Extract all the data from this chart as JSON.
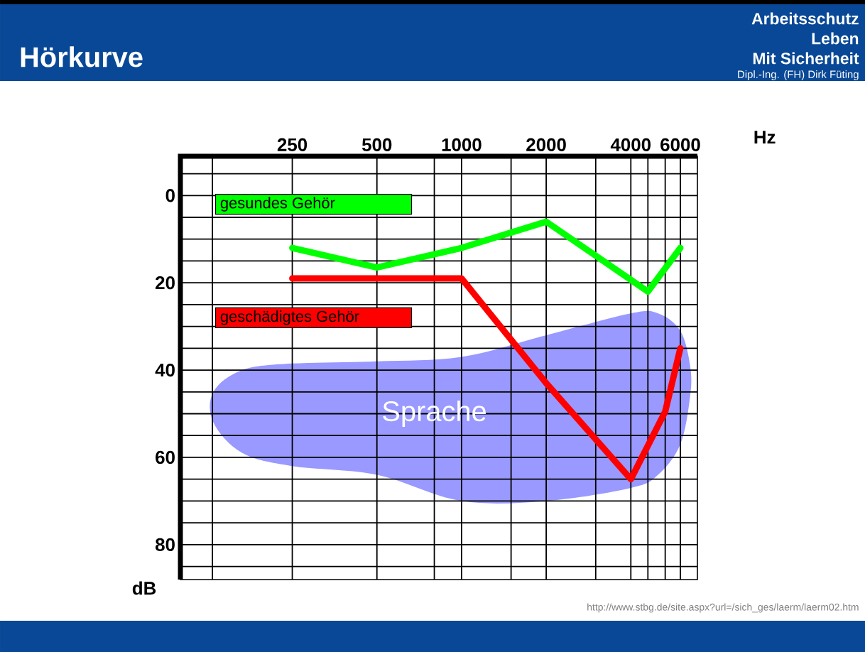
{
  "chart_data": {
    "type": "line",
    "title": "Hörkurve",
    "xlabel": "Hz",
    "ylabel": "dB",
    "annotations": [
      "Arbeitsschutz",
      "Leben",
      "Mit Sicherheit",
      "Dipl.-Ing. (FH) Dirk Füting",
      "http://www.stbg.de/site.aspx?url=/sich_ges/laerm/laerm02.htm",
      "Sprache"
    ],
    "series": [
      {
        "name": "gesundes Gehör",
        "color": "#00ff00",
        "x": [
          250,
          500,
          1000,
          2000,
          4600,
          6000
        ],
        "values": [
          12,
          16.5,
          12,
          6,
          22,
          12
        ]
      },
      {
        "name": "geschädigtes Gehör",
        "color": "#ff0000",
        "x": [
          250,
          500,
          1000,
          2000,
          4000,
          5300,
          6000
        ],
        "values": [
          19,
          19,
          19,
          43,
          65,
          49.5,
          35
        ]
      }
    ],
    "xlim": [
      100,
      6900
    ],
    "xticks": [
      {
        "value": 130,
        "label": null
      },
      250,
      500,
      {
        "value": 800,
        "label": null
      },
      1000,
      {
        "value": 1500,
        "label": null
      },
      2000,
      {
        "value": 3000,
        "label": null
      },
      4000,
      {
        "value": 4600,
        "label": null
      },
      {
        "value": 5300,
        "label": null
      },
      6000
    ],
    "ylim": [
      88,
      -9
    ],
    "yticks": [
      {
        "value": -5,
        "label": null
      },
      0,
      {
        "value": 5,
        "label": null
      },
      {
        "value": 10,
        "label": null
      },
      {
        "value": 15,
        "label": null
      },
      20,
      {
        "value": 25,
        "label": null
      },
      {
        "value": 30,
        "label": null
      },
      {
        "value": 35,
        "label": null
      },
      40,
      {
        "value": 45,
        "label": null
      },
      {
        "value": 50,
        "label": null
      },
      {
        "value": 55,
        "label": null
      },
      60,
      {
        "value": 65,
        "label": null
      },
      {
        "value": 70,
        "label": null
      },
      {
        "value": 75,
        "label": null
      },
      80,
      {
        "value": 85,
        "label": null
      }
    ],
    "log": "x",
    "grid": true,
    "legend": "left",
    "marker": "none",
    "line_style": "solid"
  }
}
